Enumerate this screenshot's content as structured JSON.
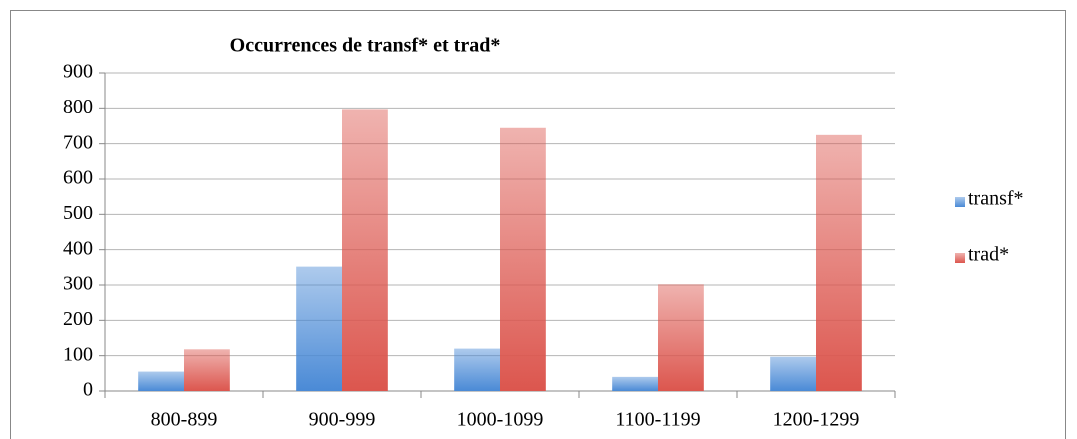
{
  "chart_data": {
    "type": "bar",
    "title": "Occurrences de transf* et trad*",
    "categories": [
      "800-899",
      "900-999",
      "1000-1099",
      "1100-1199",
      "1200-1299"
    ],
    "series": [
      {
        "name": "transf*",
        "color": "#4a8ad6",
        "values": [
          55,
          352,
          120,
          40,
          97
        ]
      },
      {
        "name": "trad*",
        "color": "#dc564e",
        "values": [
          118,
          797,
          745,
          302,
          725
        ]
      }
    ],
    "ylim": [
      0,
      900
    ],
    "yticks": [
      0,
      100,
      200,
      300,
      400,
      500,
      600,
      700,
      800,
      900
    ],
    "grid": true,
    "legend": "right"
  }
}
